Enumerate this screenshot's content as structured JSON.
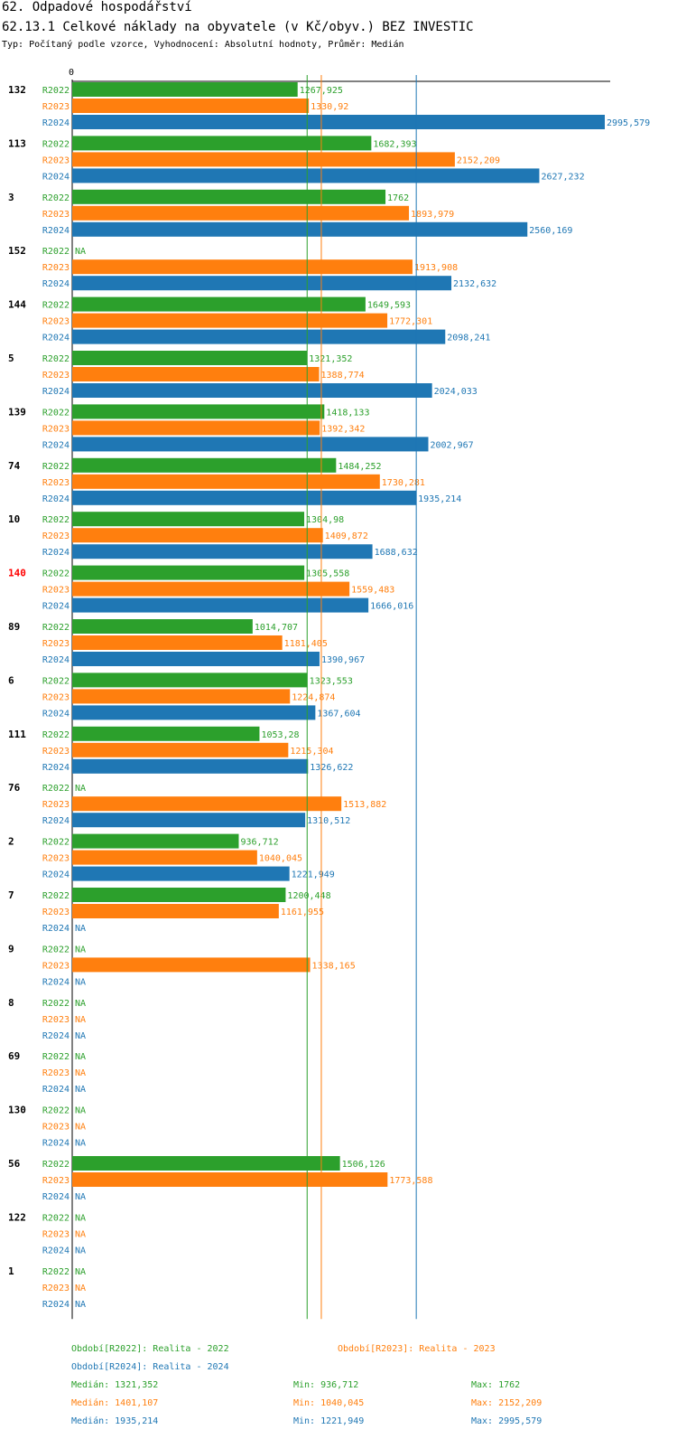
{
  "title": "62. Odpadové hospodářství",
  "subtitle": "62.13.1 Celkové náklady na obyvatele (v Kč/obyv.) BEZ INVESTIC",
  "info": "Typ: Počítaný podle vzorce, Vyhodnocení: Absolutní hodnoty, Průměr: Medián",
  "chart_data": {
    "type": "bar",
    "orientation": "horizontal",
    "axis_zero_label": "0",
    "xlim": [
      0,
      3050
    ],
    "highlight_group": "140",
    "na_label": "NA",
    "series": [
      {
        "key": "R2022",
        "label": "R2022",
        "color": "#2ca02c"
      },
      {
        "key": "R2023",
        "label": "R2023",
        "color": "#ff7f0e"
      },
      {
        "key": "R2024",
        "label": "R2024",
        "color": "#1f77b4"
      }
    ],
    "groups": [
      {
        "id": "132",
        "values": [
          1267.925,
          1330.92,
          2995.579
        ],
        "labels": [
          "1267,925",
          "1330,92",
          "2995,579"
        ]
      },
      {
        "id": "113",
        "values": [
          1682.393,
          2152.209,
          2627.232
        ],
        "labels": [
          "1682,393",
          "2152,209",
          "2627,232"
        ]
      },
      {
        "id": "3",
        "values": [
          1762,
          1893.979,
          2560.169
        ],
        "labels": [
          "1762",
          "1893,979",
          "2560,169"
        ]
      },
      {
        "id": "152",
        "values": [
          null,
          1913.908,
          2132.632
        ],
        "labels": [
          "NA",
          "1913,908",
          "2132,632"
        ]
      },
      {
        "id": "144",
        "values": [
          1649.593,
          1772.301,
          2098.241
        ],
        "labels": [
          "1649,593",
          "1772,301",
          "2098,241"
        ]
      },
      {
        "id": "5",
        "values": [
          1321.352,
          1388.774,
          2024.033
        ],
        "labels": [
          "1321,352",
          "1388,774",
          "2024,033"
        ]
      },
      {
        "id": "139",
        "values": [
          1418.133,
          1392.342,
          2002.967
        ],
        "labels": [
          "1418,133",
          "1392,342",
          "2002,967"
        ]
      },
      {
        "id": "74",
        "values": [
          1484.252,
          1730.281,
          1935.214
        ],
        "labels": [
          "1484,252",
          "1730,281",
          "1935,214"
        ]
      },
      {
        "id": "10",
        "values": [
          1304.98,
          1409.872,
          1688.632
        ],
        "labels": [
          "1304,98",
          "1409,872",
          "1688,632"
        ]
      },
      {
        "id": "140",
        "values": [
          1305.558,
          1559.483,
          1666.016
        ],
        "labels": [
          "1305,558",
          "1559,483",
          "1666,016"
        ]
      },
      {
        "id": "89",
        "values": [
          1014.707,
          1181.405,
          1390.967
        ],
        "labels": [
          "1014,707",
          "1181,405",
          "1390,967"
        ]
      },
      {
        "id": "6",
        "values": [
          1323.553,
          1224.874,
          1367.604
        ],
        "labels": [
          "1323,553",
          "1224,874",
          "1367,604"
        ]
      },
      {
        "id": "111",
        "values": [
          1053.28,
          1215.304,
          1326.622
        ],
        "labels": [
          "1053,28",
          "1215,304",
          "1326,622"
        ]
      },
      {
        "id": "76",
        "values": [
          null,
          1513.882,
          1310.512
        ],
        "labels": [
          "NA",
          "1513,882",
          "1310,512"
        ]
      },
      {
        "id": "2",
        "values": [
          936.712,
          1040.045,
          1221.949
        ],
        "labels": [
          "936,712",
          "1040,045",
          "1221,949"
        ]
      },
      {
        "id": "7",
        "values": [
          1200.448,
          1161.955,
          null
        ],
        "labels": [
          "1200,448",
          "1161,955",
          "NA"
        ]
      },
      {
        "id": "9",
        "values": [
          null,
          1338.165,
          null
        ],
        "labels": [
          "NA",
          "1338,165",
          "NA"
        ]
      },
      {
        "id": "8",
        "values": [
          null,
          null,
          null
        ],
        "labels": [
          "NA",
          "NA",
          "NA"
        ]
      },
      {
        "id": "69",
        "values": [
          null,
          null,
          null
        ],
        "labels": [
          "NA",
          "NA",
          "NA"
        ]
      },
      {
        "id": "130",
        "values": [
          null,
          null,
          null
        ],
        "labels": [
          "NA",
          "NA",
          "NA"
        ]
      },
      {
        "id": "56",
        "values": [
          1506.126,
          1773.588,
          null
        ],
        "labels": [
          "1506,126",
          "1773,588",
          "NA"
        ]
      },
      {
        "id": "122",
        "values": [
          null,
          null,
          null
        ],
        "labels": [
          "NA",
          "NA",
          "NA"
        ]
      },
      {
        "id": "1",
        "values": [
          null,
          null,
          null
        ],
        "labels": [
          "NA",
          "NA",
          "NA"
        ]
      }
    ],
    "median_lines": [
      1321.352,
      1401.107,
      1935.214
    ],
    "legend": {
      "periods": [
        "Období[R2022]: Realita - 2022",
        "Období[R2023]: Realita - 2023",
        "Období[R2024]: Realita - 2024"
      ],
      "stats": [
        {
          "median": "Medián: 1321,352",
          "min": "Min: 936,712",
          "max": "Max: 1762"
        },
        {
          "median": "Medián: 1401,107",
          "min": "Min: 1040,045",
          "max": "Max: 2152,209"
        },
        {
          "median": "Medián: 1935,214",
          "min": "Min: 1221,949",
          "max": "Max: 2995,579"
        }
      ]
    }
  }
}
